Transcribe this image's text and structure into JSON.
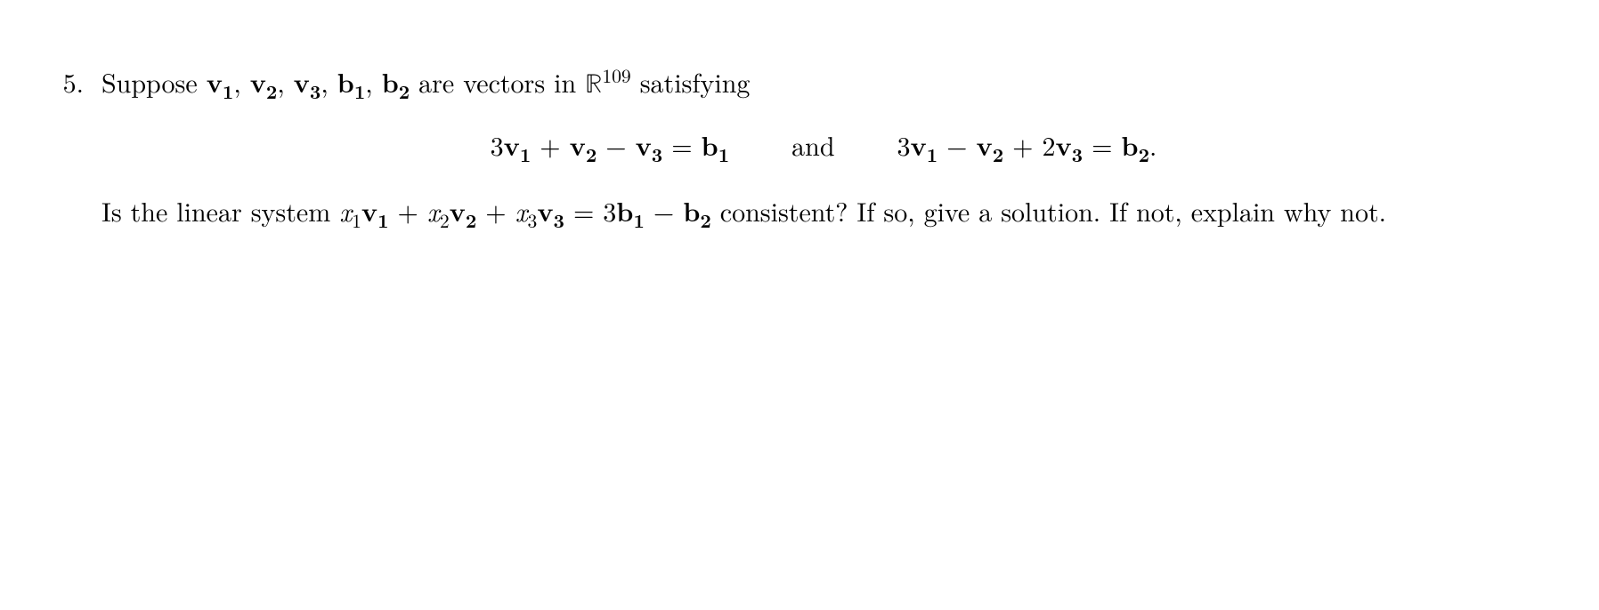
{
  "problem": {
    "number": "5.",
    "intro_prefix": "Suppose ",
    "vectors": {
      "v1": "v",
      "v1_sub": "1",
      "v2": "v",
      "v2_sub": "2",
      "v3": "v",
      "v3_sub": "3",
      "b1": "b",
      "b1_sub": "1",
      "b2": "b",
      "b2_sub": "2"
    },
    "intro_mid": " are vectors in ",
    "space_symbol": "ℝ",
    "space_dim": "109",
    "intro_suffix": " satisfying",
    "equation1": {
      "coef1": "3",
      "v1": "v",
      "v1_sub": "1",
      "op1": " + ",
      "v2": "v",
      "v2_sub": "2",
      "op2": " − ",
      "v3": "v",
      "v3_sub": "3",
      "equals": " = ",
      "rhs": "b",
      "rhs_sub": "1"
    },
    "connector": "and",
    "equation2": {
      "coef1": "3",
      "v1": "v",
      "v1_sub": "1",
      "op1": " − ",
      "v2": "v",
      "v2_sub": "2",
      "op2": " + 2",
      "v3": "v",
      "v3_sub": "3",
      "equals": " = ",
      "rhs": "b",
      "rhs_sub": "2",
      "period": "."
    },
    "question": {
      "prefix": "Is the linear system ",
      "x1": "x",
      "x1_sub": "1",
      "v1": "v",
      "v1_sub": "1",
      "op1": " + ",
      "x2": "x",
      "x2_sub": "2",
      "v2": "v",
      "v2_sub": "2",
      "op2": " + ",
      "x3": "x",
      "x3_sub": "3",
      "v3": "v",
      "v3_sub": "3",
      "equals": " = 3",
      "b1": "b",
      "b1_sub": "1",
      "minus": " − ",
      "b2": "b",
      "b2_sub": "2",
      "suffix": " consistent?  If so, give a solution.  If not, explain why not."
    }
  },
  "colors": {
    "background": "#ffffff",
    "text": "#000000"
  },
  "fontsize": {
    "body": 30,
    "sub": 22,
    "sup": 22
  }
}
